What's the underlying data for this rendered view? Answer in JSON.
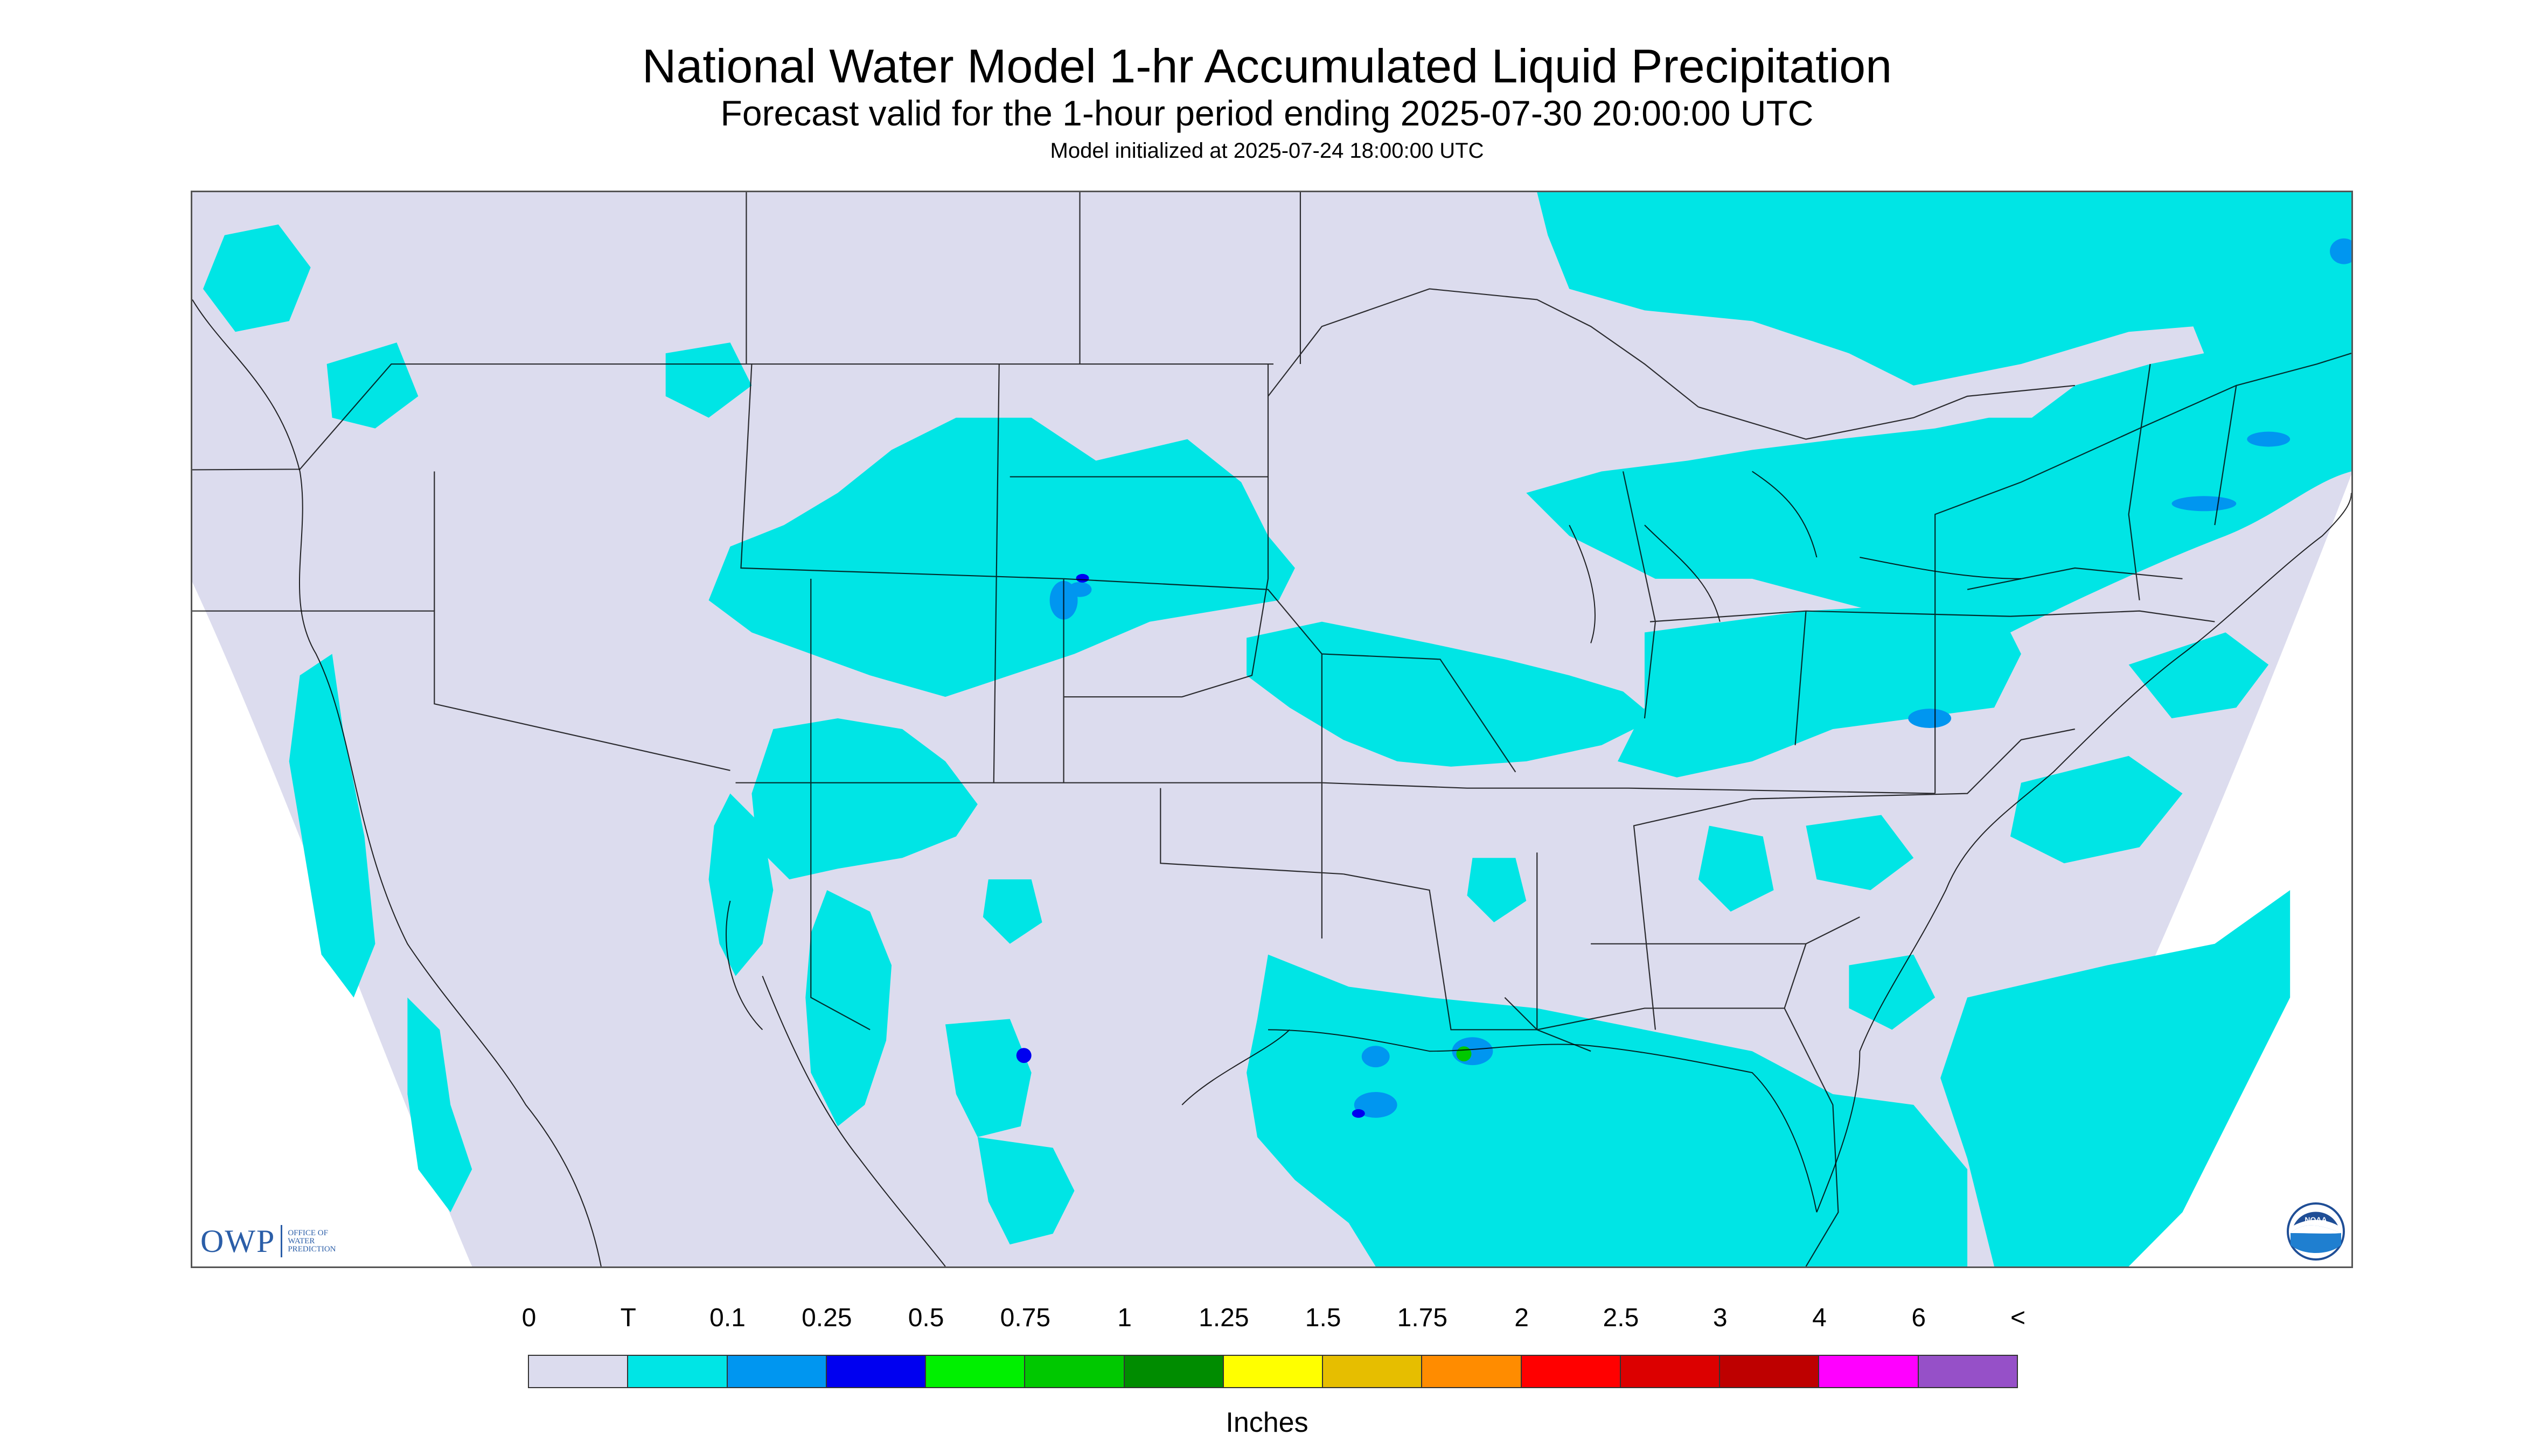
{
  "header": {
    "title": "National Water Model 1-hr Accumulated Liquid Precipitation",
    "subtitle": "Forecast valid for the 1-hour period ending 2025-07-30 20:00:00 UTC",
    "init": "Model initialized at 2025-07-24 18:00:00 UTC"
  },
  "legend": {
    "labels": [
      "0",
      "T",
      "0.1",
      "0.25",
      "0.5",
      "0.75",
      "1",
      "1.25",
      "1.5",
      "1.75",
      "2",
      "2.5",
      "3",
      "4",
      "6",
      "<"
    ],
    "colors": [
      "#dcdcee",
      "#00e5e5",
      "#0096f0",
      "#0000f0",
      "#00f000",
      "#00c800",
      "#008c00",
      "#ffff00",
      "#e6be00",
      "#ff8c00",
      "#ff0000",
      "#dc0000",
      "#be0000",
      "#ff00ff",
      "#9650c8"
    ],
    "units": "Inches"
  },
  "logos": {
    "owp_mark": "OWP",
    "owp_text": [
      "OFFICE OF",
      "WATER",
      "PREDICTION"
    ],
    "noaa": "NOAA"
  },
  "map": {
    "background_color": "#dcdcee",
    "trace_color": "#00e5e5",
    "light_color": "#0096f0",
    "heavy_color": "#0000f0",
    "border_color": "#000000"
  }
}
